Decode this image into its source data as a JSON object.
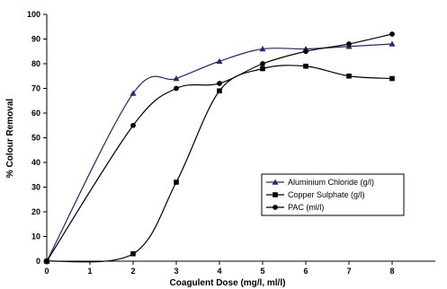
{
  "chart_data": {
    "type": "line",
    "title": "",
    "xlabel": "Coagulent Dose (mg/l, ml/l)",
    "ylabel": "% Colour Removal",
    "xlim": [
      0,
      9
    ],
    "ylim": [
      0,
      100
    ],
    "x_ticks": [
      0,
      1,
      2,
      3,
      4,
      5,
      6,
      7,
      8
    ],
    "y_ticks": [
      0,
      10,
      20,
      30,
      40,
      50,
      60,
      70,
      80,
      90,
      100
    ],
    "grid": false,
    "smooth": true,
    "legend_position": "right-middle",
    "series": [
      {
        "name": "Aluminium Chloride (g/l)",
        "marker": "triangle",
        "color": "#1f2a7a",
        "x": [
          0,
          2,
          3,
          4,
          5,
          6,
          7,
          8
        ],
        "y": [
          0,
          68,
          74,
          81,
          86,
          86,
          87,
          88
        ]
      },
      {
        "name": "Copper Sulphate (g/l)",
        "marker": "square",
        "color": "#000000",
        "x": [
          0,
          2,
          3,
          4,
          5,
          6,
          7,
          8
        ],
        "y": [
          0,
          3,
          32,
          69,
          78,
          79,
          75,
          74
        ]
      },
      {
        "name": "PAC (ml/l)",
        "marker": "circle",
        "color": "#000000",
        "x": [
          0,
          2,
          3,
          4,
          5,
          6,
          7,
          8
        ],
        "y": [
          0,
          55,
          70,
          72,
          80,
          85,
          88,
          92
        ]
      }
    ]
  }
}
